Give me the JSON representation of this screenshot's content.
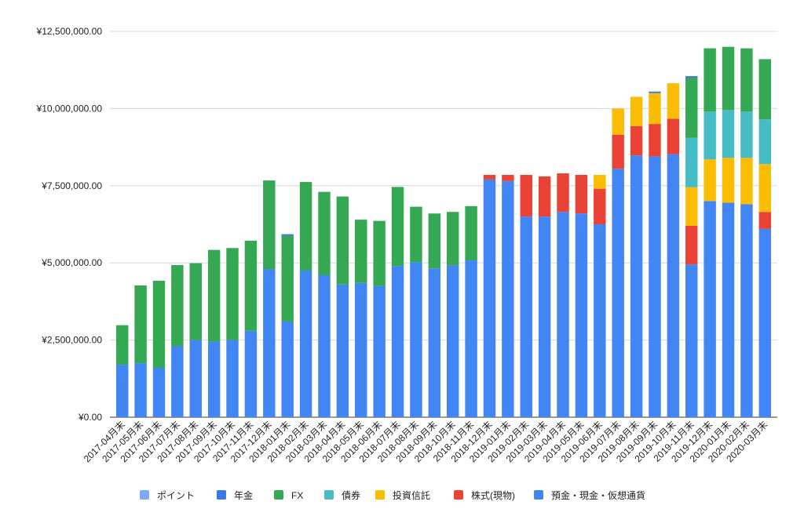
{
  "chart_data": {
    "type": "bar",
    "stacked": true,
    "ylim": [
      0,
      12500000
    ],
    "yticks": [
      0,
      2500000,
      5000000,
      7500000,
      10000000,
      12500000
    ],
    "ytick_labels": [
      "¥0.00",
      "¥2,500,000.00",
      "¥5,000,000.00",
      "¥7,500,000.00",
      "¥10,000,000.00",
      "¥12,500,000.00"
    ],
    "grid": true,
    "legend_position": "bottom",
    "categories": [
      "2017-04月末",
      "2017-05月末",
      "2017-06月末",
      "2017-07月末",
      "2017-08月末",
      "2017-09月末",
      "2017-10月末",
      "2017-11月末",
      "2017-12月末",
      "2018-01月末",
      "2018-02月末",
      "2018-03月末",
      "2018-04月末",
      "2018-05月末",
      "2018-06月末",
      "2018-07月末",
      "2018-08月末",
      "2018-09月末",
      "2018-10月末",
      "2018-11月末",
      "2018-12月末",
      "2019-01月末",
      "2019-02月末",
      "2019-03月末",
      "2019-04月末",
      "2019-05月末",
      "2019-06月末",
      "2019-07月末",
      "2019-08月末",
      "2019-09月末",
      "2019-10月末",
      "2019-11月末",
      "2019-12月末",
      "2020-01月末",
      "2020-02月末",
      "2020-03月末"
    ],
    "series": [
      {
        "name": "預金・現金・仮想通貨",
        "color": "#4285F4",
        "values": [
          1700000,
          1750000,
          1600000,
          2300000,
          2500000,
          2450000,
          2500000,
          2800000,
          4800000,
          3100000,
          4750000,
          4600000,
          4300000,
          4350000,
          4250000,
          4900000,
          5020000,
          4820000,
          4920000,
          5080000,
          7700000,
          7650000,
          6500000,
          6500000,
          6650000,
          6600000,
          6250000,
          8050000,
          8480000,
          8450000,
          8520000,
          4950000,
          7000000,
          6950000,
          6900000,
          6100000
        ]
      },
      {
        "name": "株式(現物)",
        "color": "#EA4335",
        "values": [
          0,
          0,
          0,
          0,
          0,
          0,
          0,
          0,
          0,
          0,
          0,
          0,
          0,
          0,
          0,
          0,
          0,
          0,
          0,
          0,
          150000,
          200000,
          1350000,
          1300000,
          1250000,
          1250000,
          1150000,
          1100000,
          950000,
          1050000,
          1150000,
          1250000,
          0,
          0,
          0,
          550000
        ]
      },
      {
        "name": "投資信託",
        "color": "#FBBC04",
        "values": [
          0,
          0,
          0,
          0,
          0,
          0,
          0,
          0,
          0,
          0,
          0,
          0,
          0,
          0,
          0,
          0,
          0,
          0,
          0,
          0,
          0,
          0,
          0,
          0,
          0,
          0,
          450000,
          850000,
          950000,
          1000000,
          1150000,
          1250000,
          1350000,
          1450000,
          1500000,
          1550000
        ]
      },
      {
        "name": "債券",
        "color": "#46BDC6",
        "values": [
          0,
          0,
          0,
          0,
          0,
          0,
          0,
          0,
          0,
          0,
          0,
          0,
          0,
          0,
          0,
          0,
          0,
          0,
          0,
          0,
          0,
          0,
          0,
          0,
          0,
          0,
          0,
          0,
          0,
          0,
          0,
          1600000,
          1550000,
          1550000,
          1500000,
          1450000
        ]
      },
      {
        "name": "FX",
        "color": "#34A853",
        "values": [
          1280000,
          2520000,
          2820000,
          2630000,
          2490000,
          2970000,
          2980000,
          2920000,
          2870000,
          2780000,
          2870000,
          2700000,
          2850000,
          2050000,
          2110000,
          2560000,
          1800000,
          1780000,
          1730000,
          1760000,
          0,
          0,
          0,
          0,
          0,
          0,
          0,
          0,
          0,
          0,
          0,
          1950000,
          2050000,
          2050000,
          2050000,
          1950000
        ]
      },
      {
        "name": "年金",
        "color": "#3B78E7",
        "values": [
          0,
          0,
          0,
          0,
          0,
          0,
          0,
          0,
          0,
          50000,
          0,
          0,
          0,
          0,
          0,
          0,
          0,
          0,
          0,
          0,
          0,
          0,
          0,
          0,
          0,
          0,
          0,
          0,
          0,
          50000,
          0,
          50000,
          0,
          0,
          0,
          0
        ]
      },
      {
        "name": "ポイント",
        "color": "#7BAAF7",
        "values": [
          0,
          0,
          0,
          0,
          0,
          0,
          0,
          0,
          0,
          0,
          0,
          0,
          0,
          0,
          0,
          0,
          0,
          0,
          0,
          0,
          0,
          0,
          0,
          0,
          0,
          0,
          0,
          0,
          0,
          0,
          0,
          0,
          0,
          0,
          0,
          0
        ]
      }
    ],
    "legend_order": [
      "ポイント",
      "年金",
      "FX",
      "債券",
      "投資信託",
      "株式(現物)",
      "預金・現金・仮想通貨"
    ]
  }
}
